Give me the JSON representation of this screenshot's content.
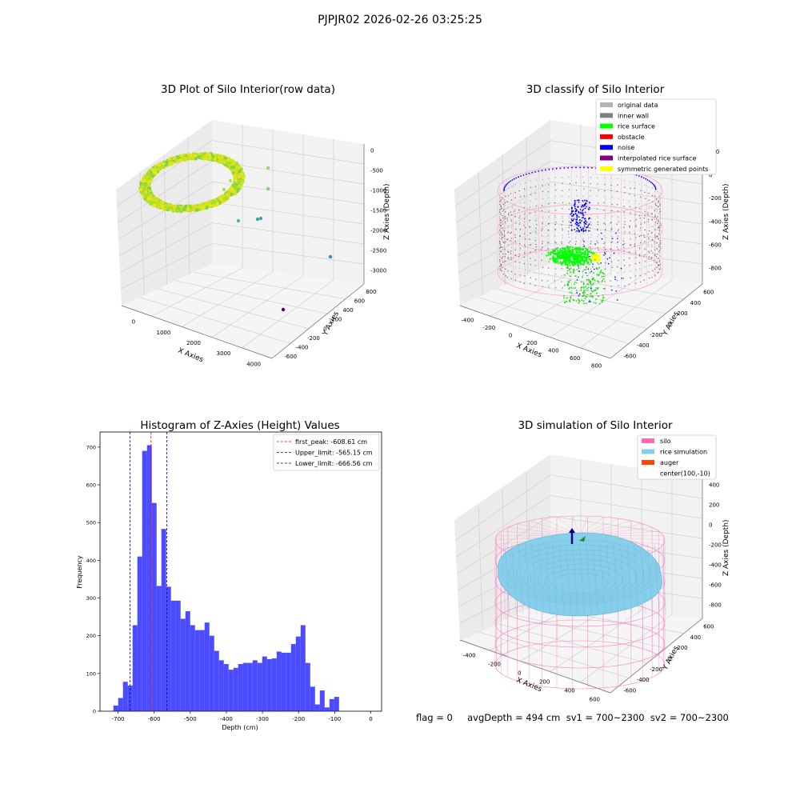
{
  "figure": {
    "suptitle": "PJPJR02 2026-02-26 03:25:25",
    "footer": "flag = 0     avgDepth = 494 cm  sv1 = 700~2300  sv2 = 700~2300"
  },
  "panels": {
    "raw": {
      "title": "3D Plot of Silo Interior(row data)",
      "xlabel": "X Axies",
      "ylabel": "Y Axies",
      "zlabel": "Z Axies (Depth)",
      "xticks": [
        "0",
        "1000",
        "2000",
        "3000",
        "4000"
      ],
      "yticks": [
        "-600",
        "-400",
        "-200",
        "0",
        "200",
        "400",
        "600",
        "800"
      ],
      "zticks": [
        "0",
        "-500",
        "-1000",
        "-1500",
        "-2000",
        "-2500",
        "-3000"
      ]
    },
    "classify": {
      "title": "3D classify of Silo Interior",
      "xlabel": "X Axies",
      "ylabel": "Y Axies",
      "zlabel": "Z Axies (Depth)",
      "xticks": [
        "-400",
        "-200",
        "0",
        "200",
        "400",
        "600",
        "800"
      ],
      "yticks": [
        "-600",
        "-400",
        "-200",
        "0",
        "200",
        "400",
        "600"
      ],
      "zticks": [
        "200",
        "0",
        "-200",
        "-400",
        "-600",
        "-800"
      ],
      "legend": [
        {
          "label": "original data",
          "color": "#b3b3b3"
        },
        {
          "label": "inner wall",
          "color": "#808080"
        },
        {
          "label": "rice surface",
          "color": "#00ff00"
        },
        {
          "label": "obstacle",
          "color": "#ff0000"
        },
        {
          "label": "noise",
          "color": "#0000ff"
        },
        {
          "label": "interpolated rice surface",
          "color": "#800080"
        },
        {
          "label": "symmetric generated points",
          "color": "#ffff00"
        }
      ]
    },
    "simulation": {
      "title": "3D simulation of Silo Interior",
      "xlabel": "X Axies",
      "ylabel": "Y Axies",
      "zlabel": "Z Axies (Depth)",
      "xticks": [
        "-400",
        "-200",
        "0",
        "200",
        "400",
        "600"
      ],
      "yticks": [
        "-600",
        "-400",
        "-200",
        "0",
        "200",
        "400",
        "600"
      ],
      "zticks": [
        "400",
        "200",
        "0",
        "-200",
        "-400",
        "-600",
        "-800"
      ],
      "legend": [
        {
          "label": "silo",
          "color": "#ff69b4"
        },
        {
          "label": "rice simulation",
          "color": "#87ceeb"
        },
        {
          "label": "auger",
          "color": "#ff4500"
        },
        {
          "label": "center(100,-10)",
          "color": ""
        }
      ]
    }
  },
  "chart_data": [
    {
      "type": "scatter",
      "title": "3D Plot of Silo Interior(row data)",
      "xlabel": "X Axies",
      "ylabel": "Y Axies",
      "zlabel": "Z Axies (Depth)",
      "xlim": [
        -500,
        4200
      ],
      "ylim": [
        -700,
        900
      ],
      "zlim": [
        -3100,
        100
      ]
    },
    {
      "type": "scatter",
      "title": "3D classify of Silo Interior",
      "xlabel": "X Axies",
      "ylabel": "Y Axies",
      "zlabel": "Z Axies (Depth)",
      "xlim": [
        -500,
        850
      ],
      "ylim": [
        -700,
        700
      ],
      "zlim": [
        -900,
        300
      ]
    },
    {
      "type": "bar",
      "title": "Histogram of Z-Axies (Height) Values",
      "xlabel": "Depth (cm)",
      "ylabel": "Frequency",
      "xlim": [
        -750,
        30
      ],
      "ylim": [
        0,
        740
      ],
      "xticks": [
        -700,
        -600,
        -500,
        -400,
        -300,
        -200,
        -100,
        0
      ],
      "yticks": [
        0,
        100,
        200,
        300,
        400,
        500,
        600,
        700
      ],
      "bin_width": 13.3,
      "bin_start": -713,
      "values": [
        15,
        35,
        78,
        68,
        228,
        410,
        690,
        705,
        552,
        332,
        483,
        330,
        293,
        293,
        245,
        265,
        228,
        215,
        215,
        235,
        200,
        160,
        135,
        125,
        110,
        115,
        125,
        128,
        128,
        135,
        128,
        145,
        138,
        140,
        158,
        155,
        155,
        178,
        198,
        228,
        128,
        65,
        18,
        55,
        10,
        32,
        38
      ],
      "color": "#0000ff",
      "lines": [
        {
          "label": "first_peak: -608.61 cm",
          "x": -608.61,
          "color": "#ff0000"
        },
        {
          "label": "Upper_limit: -565.15 cm",
          "x": -565.15,
          "color": "#00008b"
        },
        {
          "label": "Lower_limit: -666.56 cm",
          "x": -666.56,
          "color": "#00008b"
        }
      ],
      "legend_position": "top-right"
    },
    {
      "type": "scatter",
      "title": "3D simulation of Silo Interior",
      "xlabel": "X Axies",
      "ylabel": "Y Axies",
      "zlabel": "Z Axies (Depth)",
      "xlim": [
        -550,
        750
      ],
      "ylim": [
        -700,
        700
      ],
      "zlim": [
        -900,
        450
      ]
    }
  ]
}
